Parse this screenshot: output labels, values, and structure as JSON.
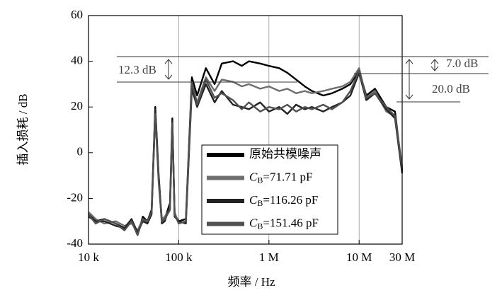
{
  "chart_data": {
    "type": "line",
    "x_label": "频率 / Hz",
    "y_label": "插入损耗 / dB",
    "x_scale": "log",
    "grid": true,
    "legend": "lower right",
    "xlim": [
      10000,
      30000000
    ],
    "xticks": [
      {
        "value": 10000,
        "label": "10 k"
      },
      {
        "value": 100000,
        "label": "100 k"
      },
      {
        "value": 1000000,
        "label": "1 M"
      },
      {
        "value": 10000000,
        "label": "10 M"
      },
      {
        "value": 30000000,
        "label": "30 M"
      }
    ],
    "ylim": [
      -40,
      60
    ],
    "yticks": [
      -40,
      -20,
      0,
      20,
      40,
      60
    ],
    "annotations": [
      "12.3 dB",
      "7.0 dB",
      "20.0 dB"
    ],
    "x": [
      10000,
      12000,
      15000,
      20000,
      25000,
      30000,
      35000,
      40000,
      45000,
      50000,
      55000,
      60000,
      65000,
      70000,
      80000,
      85000,
      90000,
      100000,
      120000,
      140000,
      160000,
      200000,
      250000,
      300000,
      400000,
      500000,
      600000,
      800000,
      1000000,
      1300000,
      1600000,
      2000000,
      2500000,
      3000000,
      4000000,
      5000000,
      6500000,
      8000000,
      10000000,
      12000000,
      15000000,
      20000000,
      25000000,
      30000000
    ],
    "series": [
      {
        "name": "原始共模噪声",
        "color": "#000000",
        "values": [
          -27,
          -30,
          -29,
          -31,
          -33,
          -30,
          -36,
          -28,
          -30,
          -25,
          20,
          -10,
          -30,
          -29,
          -22,
          15,
          -27,
          -30,
          -29,
          33,
          25,
          37,
          30,
          39,
          40,
          38,
          40,
          39,
          38,
          37,
          35,
          32,
          29,
          27,
          25,
          26,
          28,
          30,
          36,
          25,
          28,
          20,
          18,
          -8
        ]
      },
      {
        "name": "CB=71.71 pF",
        "color": "#6e6e6e",
        "values": [
          -26,
          -29,
          -31,
          -30,
          -32,
          -31,
          -34,
          -29,
          -31,
          -26,
          18,
          -12,
          -29,
          -28,
          -24,
          12,
          -26,
          -31,
          -30,
          30,
          22,
          33,
          27,
          32,
          31,
          29,
          30,
          28,
          29,
          27,
          28,
          26,
          27,
          26,
          27,
          28,
          29,
          31,
          37,
          24,
          27,
          18,
          16,
          -6
        ]
      },
      {
        "name": "CB=116.26 pF",
        "color": "#222222",
        "values": [
          -28,
          -30,
          -30,
          -32,
          -33,
          -29,
          -35,
          -30,
          -31,
          -27,
          19,
          -11,
          -31,
          -30,
          -23,
          14,
          -28,
          -30,
          -31,
          28,
          20,
          30,
          22,
          27,
          21,
          20,
          19,
          22,
          18,
          20,
          17,
          21,
          19,
          20,
          18,
          20,
          22,
          25,
          35,
          23,
          26,
          19,
          15,
          -9
        ]
      },
      {
        "name": "CB=151.46 pF",
        "color": "#505050",
        "values": [
          -27,
          -31,
          -29,
          -31,
          -34,
          -30,
          -36,
          -29,
          -30,
          -26,
          17,
          -13,
          -30,
          -29,
          -25,
          13,
          -27,
          -31,
          -30,
          31,
          21,
          32,
          24,
          26,
          23,
          19,
          22,
          18,
          20,
          19,
          21,
          18,
          20,
          19,
          21,
          19,
          22,
          27,
          36,
          24,
          26,
          20,
          16,
          -7
        ]
      }
    ]
  }
}
